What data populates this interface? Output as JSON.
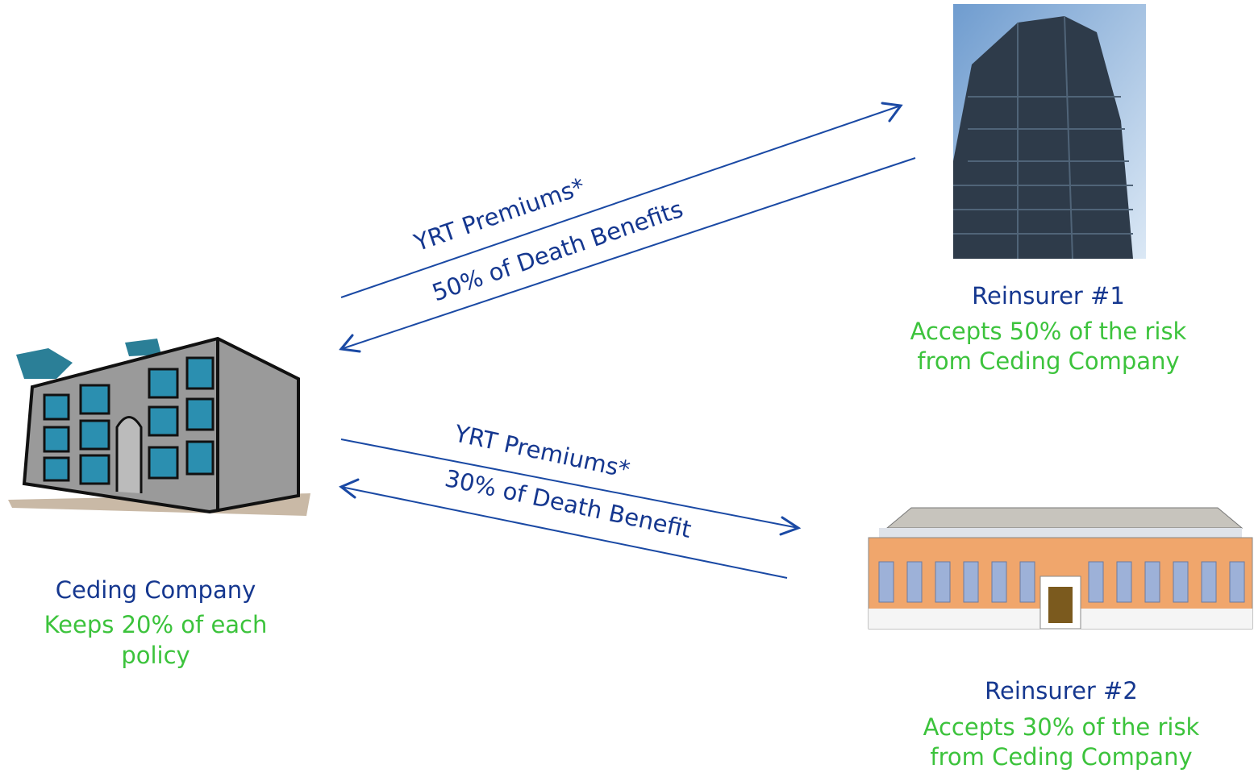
{
  "nodes": [
    {
      "label": "Ceding Company",
      "description": [
        "Keeps 20% of each",
        "policy"
      ]
    },
    {
      "label": "Reinsurer #1",
      "description": [
        "Accepts 50% of the risk",
        "from Ceding Company"
      ]
    },
    {
      "label": "Reinsurer #2",
      "description": [
        "Accepts 30% of the risk",
        "from Ceding Company"
      ]
    }
  ],
  "flows": [
    {
      "label": "YRT Premiums*"
    },
    {
      "label": "50% of Death Benefits"
    },
    {
      "label": "YRT Premiums*"
    },
    {
      "label": "30% of Death Benefit"
    }
  ]
}
